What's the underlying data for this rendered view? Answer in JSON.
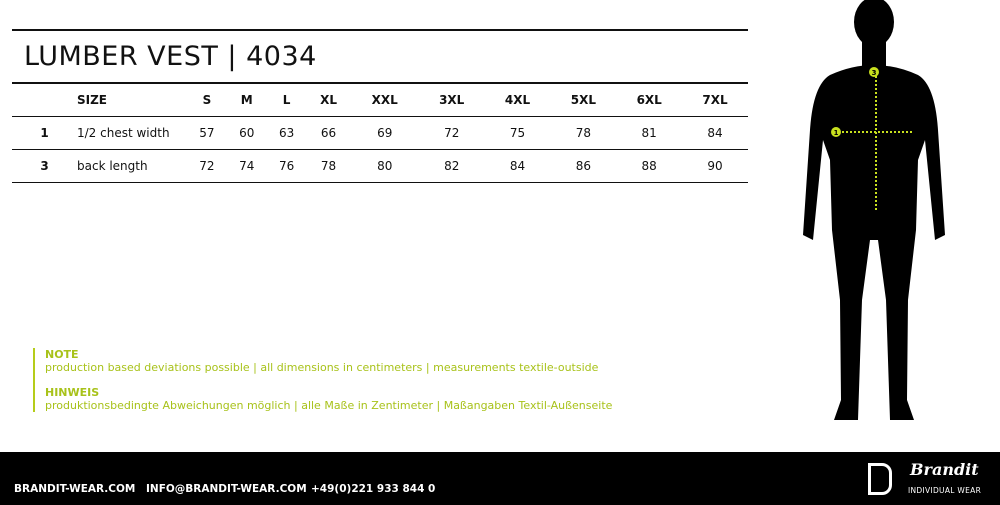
{
  "title": "LUMBER VEST | 4034",
  "table": {
    "header": {
      "num": "",
      "label": "SIZE",
      "sizes": [
        "S",
        "M",
        "L",
        "XL",
        "XXL",
        "3XL",
        "4XL",
        "5XL",
        "6XL",
        "7XL"
      ]
    },
    "rows": [
      {
        "num": "1",
        "label": "1/2 chest width",
        "values": [
          "57",
          "60",
          "63",
          "66",
          "69",
          "72",
          "75",
          "78",
          "81",
          "84"
        ]
      },
      {
        "num": "3",
        "label": "back length",
        "values": [
          "72",
          "74",
          "76",
          "78",
          "80",
          "82",
          "84",
          "86",
          "88",
          "90"
        ]
      }
    ]
  },
  "notes": {
    "en_heading": "NOTE",
    "en_text": "production based deviations possible | all dimensions in centimeters  |  measurements textile-outside",
    "de_heading": "HINWEIS",
    "de_text": "produktionsbedingte Abweichungen möglich  |  alle Maße in Zentimeter  |  Maßangaben Textil-Außenseite"
  },
  "figure": {
    "markers": [
      "1",
      "3"
    ],
    "accent": "#c8e01e"
  },
  "footer": {
    "website": "BRANDIT-WEAR.COM",
    "email": "INFO@BRANDIT-WEAR.COM",
    "phone": "+49(0)221 933 844 0",
    "brand": "Brandit",
    "tagline": "INDIVIDUAL WEAR"
  }
}
